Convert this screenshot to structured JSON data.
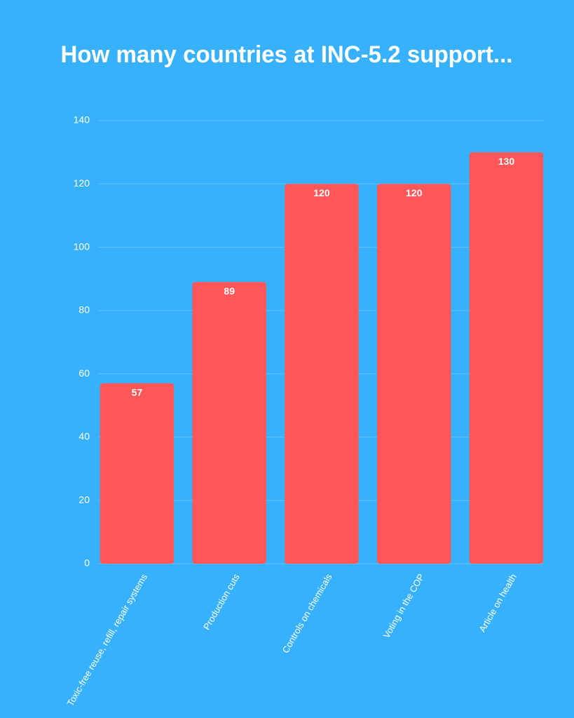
{
  "chart_data": {
    "type": "bar",
    "title": "How many countries at INC-5.2 support...",
    "categories": [
      "Toxic-free reuse, refill, repair systems",
      "Production cuts",
      "Controls on chemicals",
      "Voting in the COP",
      "Article on health"
    ],
    "values": [
      57,
      89,
      120,
      120,
      130
    ],
    "color": "#ff5757",
    "ylim": [
      0,
      140
    ],
    "yticks": [
      0,
      20,
      40,
      60,
      80,
      100,
      120,
      140
    ],
    "grid": true
  }
}
